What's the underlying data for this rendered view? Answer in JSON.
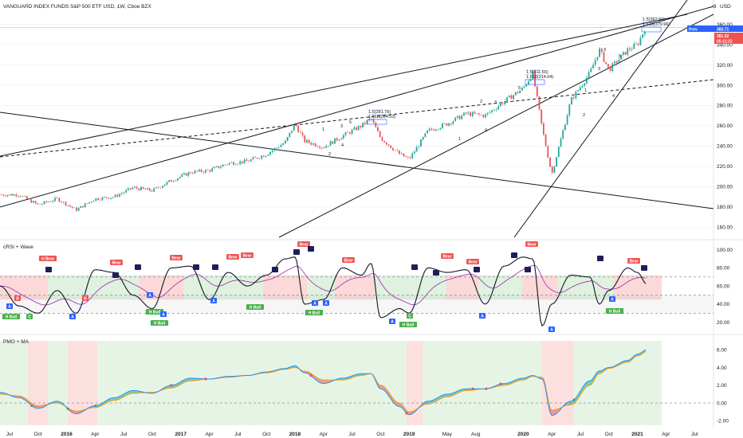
{
  "header": {
    "title": "VANGUARD INDEX FUNDS S&P 500 ETF USD, 1W, Cboe BZX",
    "currency": "USD",
    "menu_icon": "settings-icon"
  },
  "price_labels": {
    "prev": "Prev",
    "prev_value": "383.71",
    "last_value": "381.52",
    "countdown": "05:11:22"
  },
  "panes": {
    "price": {
      "name": "price",
      "ticks": [
        "360.00",
        "340.00",
        "320.00",
        "300.00",
        "280.00",
        "260.00",
        "240.00",
        "220.00",
        "200.00",
        "180.00",
        "160.00"
      ]
    },
    "crsi": {
      "name": "cRSI + Wave",
      "ticks": [
        "100.00",
        "80.00",
        "60.00",
        "40.00",
        "20.00"
      ]
    },
    "pmo": {
      "name": "PMO + MA",
      "ticks": [
        "6.00",
        "4.00",
        "2.00",
        "0.00",
        "-2.00"
      ]
    }
  },
  "x_axis": {
    "ticks": [
      "Jul",
      "Oct",
      "2016",
      "Apr",
      "Jul",
      "Oct",
      "2017",
      "Apr",
      "Jul",
      "Oct",
      "2018",
      "Apr",
      "Jul",
      "Oct",
      "2019",
      "May",
      "Aug",
      "2020",
      "Apr",
      "Jul",
      "Oct",
      "2021",
      "Apr",
      "Jul"
    ]
  },
  "wave_labels": {
    "top1_a": "1.5(281.76)",
    "top1_b": "1.618(284.63)",
    "top2_a": "1.5(311.65)",
    "top2_b": "1.618(314.04)",
    "top3_a": "1.5(362.60)",
    "top3_b": "1.618(379.96)",
    "counts": [
      "1",
      "2",
      "3",
      "4",
      "5",
      "3",
      "1",
      "2",
      "3",
      "4",
      "5",
      "1",
      "2",
      "3",
      "4",
      "5"
    ]
  },
  "signals": {
    "bear": "Bear",
    "bull": "Bull",
    "hbull": "H Bull",
    "hbear": "H Bear",
    "a": "A",
    "b": "B",
    "c": "C"
  },
  "colors": {
    "bull": "#26a69a",
    "bear": "#ef5350",
    "blue": "#2962ff",
    "purple": "#9c27b0",
    "navy": "#1e1e5a",
    "green_tag": "#4caf50",
    "pmo_line": "#2196f3",
    "pmo_ma": "#ff9800"
  },
  "chart_data": [
    {
      "type": "candlestick",
      "title": "VANGUARD INDEX FUNDS S&P 500 ETF USD, 1W, Cboe BZX",
      "xlabel": "",
      "ylabel": "USD",
      "ylim": [
        150,
        373
      ],
      "x": [
        "2015-06",
        "2015-08",
        "2015-10",
        "2015-12",
        "2016-02",
        "2016-04",
        "2016-06",
        "2016-08",
        "2016-10",
        "2016-12",
        "2017-02",
        "2017-04",
        "2017-06",
        "2017-08",
        "2017-10",
        "2017-12",
        "2018-01",
        "2018-02",
        "2018-04",
        "2018-06",
        "2018-08",
        "2018-09",
        "2018-10",
        "2018-12",
        "2019-01",
        "2019-03",
        "2019-05",
        "2019-07",
        "2019-09",
        "2019-11",
        "2020-01",
        "2020-02",
        "2020-03",
        "2020-04",
        "2020-06",
        "2020-08",
        "2020-09",
        "2020-10",
        "2020-12",
        "2021-01",
        "2021-02"
      ],
      "close": [
        192,
        192,
        182,
        188,
        177,
        188,
        190,
        199,
        196,
        206,
        214,
        216,
        223,
        225,
        232,
        244,
        262,
        245,
        239,
        250,
        260,
        267,
        248,
        232,
        227,
        255,
        262,
        272,
        270,
        284,
        297,
        312,
        257,
        212,
        285,
        312,
        335,
        315,
        335,
        340,
        360
      ]
    },
    {
      "type": "line",
      "title": "cRSI + Wave",
      "ylim": [
        10,
        105
      ],
      "x": [
        "2015-06",
        "2015-08",
        "2015-10",
        "2015-12",
        "2016-02",
        "2016-04",
        "2016-06",
        "2016-08",
        "2016-10",
        "2016-12",
        "2017-02",
        "2017-04",
        "2017-06",
        "2017-08",
        "2017-10",
        "2017-12",
        "2018-01",
        "2018-02",
        "2018-04",
        "2018-06",
        "2018-08",
        "2018-09",
        "2018-10",
        "2018-12",
        "2019-01",
        "2019-03",
        "2019-05",
        "2019-07",
        "2019-09",
        "2019-11",
        "2020-01",
        "2020-02",
        "2020-03",
        "2020-04",
        "2020-06",
        "2020-08",
        "2020-09",
        "2020-10",
        "2020-12",
        "2021-01",
        "2021-02"
      ],
      "series": [
        {
          "name": "cRSI",
          "values": [
            60,
            38,
            30,
            55,
            30,
            78,
            75,
            50,
            35,
            80,
            82,
            45,
            75,
            60,
            72,
            90,
            92,
            40,
            45,
            80,
            72,
            85,
            25,
            35,
            30,
            80,
            75,
            78,
            40,
            82,
            92,
            90,
            16,
            40,
            72,
            70,
            40,
            55,
            80,
            75,
            62
          ]
        }
      ],
      "bands": [
        30,
        50,
        70
      ]
    },
    {
      "type": "line",
      "title": "PMO + MA",
      "ylim": [
        -2.5,
        7
      ],
      "x": [
        "2015-06",
        "2015-08",
        "2015-10",
        "2015-12",
        "2016-02",
        "2016-04",
        "2016-06",
        "2016-08",
        "2016-10",
        "2016-12",
        "2017-02",
        "2017-04",
        "2017-06",
        "2017-08",
        "2017-10",
        "2017-12",
        "2018-01",
        "2018-02",
        "2018-04",
        "2018-06",
        "2018-08",
        "2018-09",
        "2018-10",
        "2018-12",
        "2019-01",
        "2019-03",
        "2019-05",
        "2019-07",
        "2019-09",
        "2019-11",
        "2020-01",
        "2020-02",
        "2020-03",
        "2020-04",
        "2020-06",
        "2020-08",
        "2020-09",
        "2020-10",
        "2020-12",
        "2021-01",
        "2021-02"
      ],
      "series": [
        {
          "name": "PMO",
          "values": [
            1.2,
            0.6,
            -0.6,
            0.2,
            -1.2,
            -0.3,
            0.6,
            1.4,
            1.1,
            2.0,
            2.8,
            2.7,
            3.0,
            3.1,
            3.5,
            3.9,
            4.2,
            3.4,
            2.2,
            2.8,
            3.3,
            3.3,
            1.6,
            -0.4,
            -1.3,
            0.2,
            1.0,
            1.6,
            1.6,
            2.2,
            2.8,
            3.1,
            2.7,
            -1.4,
            0.2,
            2.5,
            3.6,
            4.0,
            4.8,
            5.5,
            6.0
          ]
        },
        {
          "name": "MA",
          "values": [
            1.0,
            0.8,
            -0.3,
            0.0,
            -0.9,
            -0.5,
            0.3,
            1.1,
            1.2,
            1.7,
            2.5,
            2.7,
            2.9,
            3.1,
            3.4,
            3.8,
            4.0,
            3.6,
            2.6,
            2.6,
            3.1,
            3.3,
            2.0,
            0.0,
            -1.0,
            -0.1,
            0.7,
            1.4,
            1.6,
            2.0,
            2.6,
            3.0,
            2.9,
            -0.8,
            -0.2,
            2.0,
            3.3,
            3.9,
            4.6,
            5.3,
            5.8
          ]
        }
      ]
    }
  ]
}
